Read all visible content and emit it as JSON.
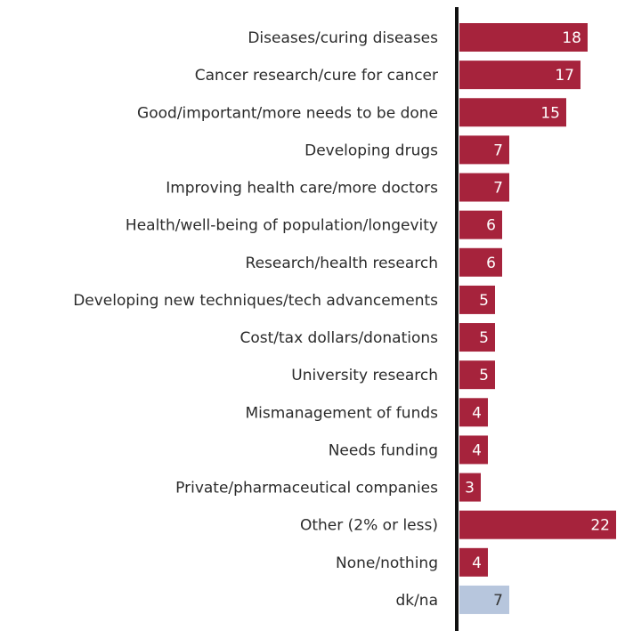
{
  "chart_data": {
    "type": "bar",
    "orientation": "horizontal",
    "categories": [
      "Diseases/curing diseases",
      "Cancer research/cure for cancer",
      "Good/important/more needs to be done",
      "Developing drugs",
      "Improving health care/more doctors",
      "Health/well-being of population/longevity",
      "Research/health research",
      "Developing new techniques/tech advancements",
      "Cost/tax dollars/donations",
      "University research",
      "Mismanagement of funds",
      "Needs funding",
      "Private/pharmaceutical companies",
      "Other (2% or less)",
      "None/nothing",
      "dk/na"
    ],
    "values": [
      18,
      17,
      15,
      7,
      7,
      6,
      6,
      5,
      5,
      5,
      4,
      4,
      3,
      22,
      4,
      7
    ],
    "colors": [
      "#a6233c",
      "#a6233c",
      "#a6233c",
      "#a6233c",
      "#a6233c",
      "#a6233c",
      "#a6233c",
      "#a6233c",
      "#a6233c",
      "#a6233c",
      "#a6233c",
      "#a6233c",
      "#a6233c",
      "#a6233c",
      "#a6233c",
      "#b7c6dd"
    ],
    "xlim": [
      0,
      22
    ]
  }
}
